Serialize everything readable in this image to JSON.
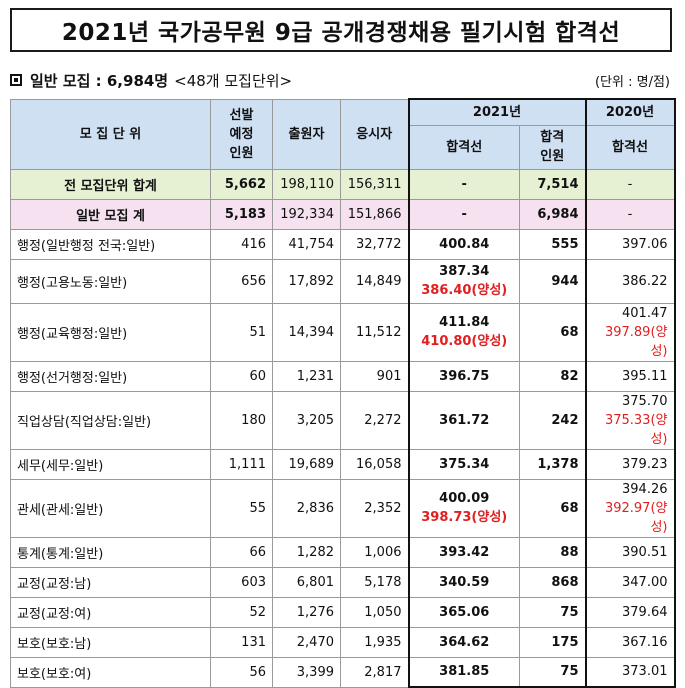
{
  "title": "2021년 국가공무원 9급 공개경쟁채용 필기시험 합격선",
  "subhead": {
    "label": "일반 모집 : 6,984명",
    "note": "<48개 모집단위>",
    "unit": "(단위 : 명/점)"
  },
  "headers": {
    "unit": "모 집 단 위",
    "planned": [
      "선발",
      "예정",
      "인원"
    ],
    "applicants": "출원자",
    "examinees": "응시자",
    "year2021": "2021년",
    "cutoff2021": "합격선",
    "passers": [
      "합격",
      "인원"
    ],
    "year2020": "2020년",
    "cutoff2020": "합격선"
  },
  "total_row": {
    "name": "전 모집단위 합계",
    "planned": "5,662",
    "applicants": "198,110",
    "examinees": "156,311",
    "cutoff2021": "-",
    "passers": "7,514",
    "cutoff2020": "-"
  },
  "general_row": {
    "name": "일반 모집 계",
    "planned": "5,183",
    "applicants": "192,334",
    "examinees": "151,866",
    "cutoff2021": "-",
    "passers": "6,984",
    "cutoff2020": "-"
  },
  "rows": [
    {
      "name": "행정(일반행정 전국:일반)",
      "planned": "416",
      "applicants": "41,754",
      "examinees": "32,772",
      "cutoff2021": "400.84",
      "cutoff2021_extra": "",
      "passers": "555",
      "cutoff2020": "397.06",
      "cutoff2020_extra": ""
    },
    {
      "name": "행정(고용노동:일반)",
      "planned": "656",
      "applicants": "17,892",
      "examinees": "14,849",
      "cutoff2021": "387.34",
      "cutoff2021_extra": "386.40(양성)",
      "passers": "944",
      "cutoff2020": "386.22",
      "cutoff2020_extra": ""
    },
    {
      "name": "행정(교육행정:일반)",
      "planned": "51",
      "applicants": "14,394",
      "examinees": "11,512",
      "cutoff2021": "411.84",
      "cutoff2021_extra": "410.80(양성)",
      "passers": "68",
      "cutoff2020": "401.47",
      "cutoff2020_extra": "397.89(양성)"
    },
    {
      "name": "행정(선거행정:일반)",
      "planned": "60",
      "applicants": "1,231",
      "examinees": "901",
      "cutoff2021": "396.75",
      "cutoff2021_extra": "",
      "passers": "82",
      "cutoff2020": "395.11",
      "cutoff2020_extra": ""
    },
    {
      "name": "직업상담(직업상담:일반)",
      "planned": "180",
      "applicants": "3,205",
      "examinees": "2,272",
      "cutoff2021": "361.72",
      "cutoff2021_extra": "",
      "passers": "242",
      "cutoff2020": "375.70",
      "cutoff2020_extra": "375.33(양성)"
    },
    {
      "name": "세무(세무:일반)",
      "planned": "1,111",
      "applicants": "19,689",
      "examinees": "16,058",
      "cutoff2021": "375.34",
      "cutoff2021_extra": "",
      "passers": "1,378",
      "cutoff2020": "379.23",
      "cutoff2020_extra": ""
    },
    {
      "name": "관세(관세:일반)",
      "planned": "55",
      "applicants": "2,836",
      "examinees": "2,352",
      "cutoff2021": "400.09",
      "cutoff2021_extra": "398.73(양성)",
      "passers": "68",
      "cutoff2020": "394.26",
      "cutoff2020_extra": "392.97(양성)"
    },
    {
      "name": "통계(통계:일반)",
      "planned": "66",
      "applicants": "1,282",
      "examinees": "1,006",
      "cutoff2021": "393.42",
      "cutoff2021_extra": "",
      "passers": "88",
      "cutoff2020": "390.51",
      "cutoff2020_extra": ""
    },
    {
      "name": "교정(교정:남)",
      "planned": "603",
      "applicants": "6,801",
      "examinees": "5,178",
      "cutoff2021": "340.59",
      "cutoff2021_extra": "",
      "passers": "868",
      "cutoff2020": "347.00",
      "cutoff2020_extra": ""
    },
    {
      "name": "교정(교정:여)",
      "planned": "52",
      "applicants": "1,276",
      "examinees": "1,050",
      "cutoff2021": "365.06",
      "cutoff2021_extra": "",
      "passers": "75",
      "cutoff2020": "379.64",
      "cutoff2020_extra": ""
    },
    {
      "name": "보호(보호:남)",
      "planned": "131",
      "applicants": "2,470",
      "examinees": "1,935",
      "cutoff2021": "364.62",
      "cutoff2021_extra": "",
      "passers": "175",
      "cutoff2020": "367.16",
      "cutoff2020_extra": ""
    },
    {
      "name": "보호(보호:여)",
      "planned": "56",
      "applicants": "3,399",
      "examinees": "2,817",
      "cutoff2021": "381.85",
      "cutoff2021_extra": "",
      "passers": "75",
      "cutoff2020": "373.01",
      "cutoff2020_extra": ""
    }
  ]
}
